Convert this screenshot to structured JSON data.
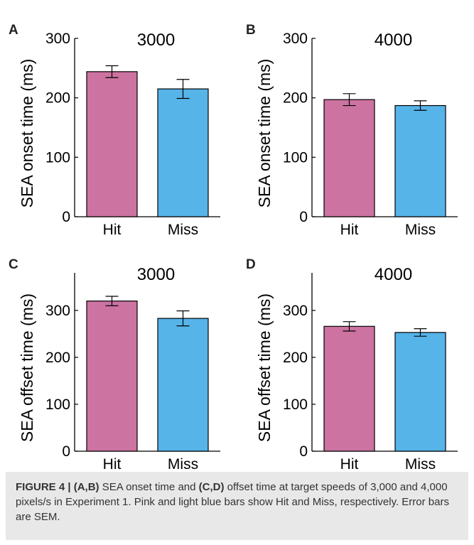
{
  "chart_data": [
    {
      "panel_letter": "A",
      "type": "bar",
      "title": "3000",
      "ylabel": "SEA onset time (ms)",
      "categories": [
        "Hit",
        "Miss"
      ],
      "values": [
        244,
        215
      ],
      "errors": [
        10,
        16
      ],
      "ylim": [
        0,
        300
      ],
      "yticks": [
        0,
        100,
        200,
        300
      ],
      "bar_colors": [
        "#cc73a1",
        "#56b4e9"
      ]
    },
    {
      "panel_letter": "B",
      "type": "bar",
      "title": "4000",
      "ylabel": "SEA onset time (ms)",
      "categories": [
        "Hit",
        "Miss"
      ],
      "values": [
        197,
        187
      ],
      "errors": [
        10,
        8
      ],
      "ylim": [
        0,
        300
      ],
      "yticks": [
        0,
        100,
        200,
        300
      ],
      "bar_colors": [
        "#cc73a1",
        "#56b4e9"
      ]
    },
    {
      "panel_letter": "C",
      "type": "bar",
      "title": "3000",
      "ylabel": "SEA offset time (ms)",
      "categories": [
        "Hit",
        "Miss"
      ],
      "values": [
        320,
        283
      ],
      "errors": [
        10,
        16
      ],
      "ylim": [
        0,
        380
      ],
      "yticks": [
        0,
        100,
        200,
        300
      ],
      "bar_colors": [
        "#cc73a1",
        "#56b4e9"
      ]
    },
    {
      "panel_letter": "D",
      "type": "bar",
      "title": "4000",
      "ylabel": "SEA offset time (ms)",
      "categories": [
        "Hit",
        "Miss"
      ],
      "values": [
        266,
        253
      ],
      "errors": [
        10,
        8
      ],
      "ylim": [
        0,
        380
      ],
      "yticks": [
        0,
        100,
        200,
        300
      ],
      "bar_colors": [
        "#cc73a1",
        "#56b4e9"
      ]
    }
  ],
  "caption": {
    "figure_label": "FIGURE 4 |",
    "ref_ab": "(A,B)",
    "text_1": "SEA onset time and",
    "ref_cd": "(C,D)",
    "text_2": "offset time at target speeds of 3,000 and 4,000 pixels/s in Experiment 1. Pink and light blue bars show Hit and Miss, respectively. Error bars are SEM."
  }
}
